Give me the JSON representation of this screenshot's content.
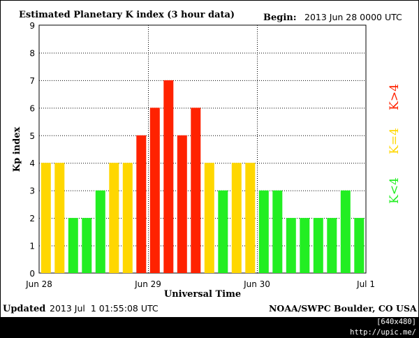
{
  "header": {
    "title": "Estimated Planetary K index (3 hour data)",
    "begin_label": "Begin:",
    "begin_value": "2013 Jun 28 0000 UTC"
  },
  "footer": {
    "updated_label": "Updated",
    "updated_value": "2013 Jul  1 01:55:08 UTC",
    "credit": "NOAA/SWPC Boulder, CO USA"
  },
  "watermark": "[640x480] http://upic.me/",
  "colors": {
    "k_below_4": "#22ee22",
    "k_equal_4": "#ffd700",
    "k_above_4": "#ff2200"
  },
  "chart_data": {
    "type": "bar",
    "title": "Estimated Planetary K index (3 hour data)",
    "xlabel": "Universal Time",
    "ylabel": "Kp index",
    "ylim": [
      0,
      9
    ],
    "yticks": [
      0,
      1,
      2,
      3,
      4,
      5,
      6,
      7,
      8,
      9
    ],
    "xticks": [
      "Jun 28",
      "Jun 29",
      "Jun 30",
      "Jul 1"
    ],
    "grid": true,
    "interval_hours": 3,
    "values": [
      4,
      4,
      2,
      2,
      3,
      4,
      4,
      5,
      6,
      7,
      5,
      6,
      4,
      3,
      4,
      4,
      3,
      3,
      2,
      2,
      2,
      2,
      3,
      2
    ],
    "legend": {
      "placement": "right",
      "entries": [
        {
          "label": "K<4",
          "color": "#22ee22"
        },
        {
          "label": "K=4",
          "color": "#ffd700"
        },
        {
          "label": "K>4",
          "color": "#ff2200"
        }
      ]
    }
  }
}
